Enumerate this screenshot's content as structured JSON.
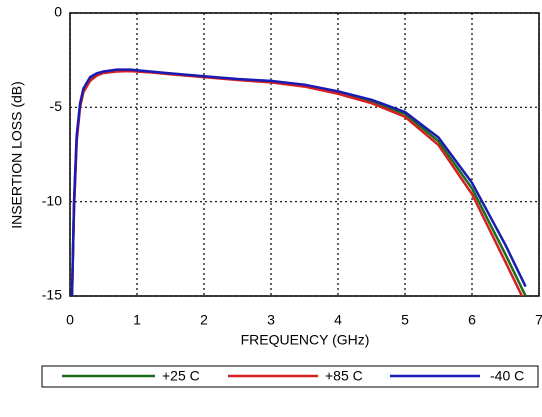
{
  "chart_data": {
    "type": "line",
    "xlabel": "FREQUENCY (GHz)",
    "ylabel": "INSERTION LOSS (dB)",
    "x": [
      0.03,
      0.06,
      0.1,
      0.15,
      0.2,
      0.3,
      0.4,
      0.5,
      0.7,
      0.9,
      1.2,
      1.5,
      2,
      2.5,
      3,
      3.5,
      4,
      4.5,
      5,
      5.5,
      6,
      6.5,
      6.8
    ],
    "series": [
      {
        "name": "+25 C",
        "color": "#1a6b1a",
        "values": [
          -15,
          -10.2,
          -6.6,
          -4.9,
          -4.1,
          -3.5,
          -3.25,
          -3.12,
          -3.03,
          -3.03,
          -3.12,
          -3.22,
          -3.37,
          -3.52,
          -3.63,
          -3.83,
          -4.2,
          -4.68,
          -5.35,
          -6.8,
          -9.3,
          -12.8,
          -15
        ]
      },
      {
        "name": "+85 C",
        "color": "#d42020",
        "values": [
          -15,
          -10.4,
          -6.8,
          -5.0,
          -4.2,
          -3.6,
          -3.32,
          -3.18,
          -3.1,
          -3.08,
          -3.15,
          -3.25,
          -3.4,
          -3.55,
          -3.68,
          -3.9,
          -4.28,
          -4.78,
          -5.5,
          -7.0,
          -9.6,
          -13.2,
          -15.4
        ]
      },
      {
        "name": "-40 C",
        "color": "#1a1ab4",
        "values": [
          -15,
          -10,
          -6.5,
          -4.8,
          -4.0,
          -3.4,
          -3.2,
          -3.1,
          -3.0,
          -3.0,
          -3.1,
          -3.2,
          -3.35,
          -3.5,
          -3.6,
          -3.8,
          -4.15,
          -4.6,
          -5.25,
          -6.6,
          -9.0,
          -12.3,
          -14.5
        ]
      }
    ],
    "xlim": [
      0,
      7
    ],
    "xticks": [
      0,
      1,
      2,
      3,
      4,
      5,
      6,
      7
    ],
    "ylim": [
      -15,
      0
    ],
    "yticks": [
      0,
      -5,
      -10,
      -15
    ],
    "grid": true
  }
}
